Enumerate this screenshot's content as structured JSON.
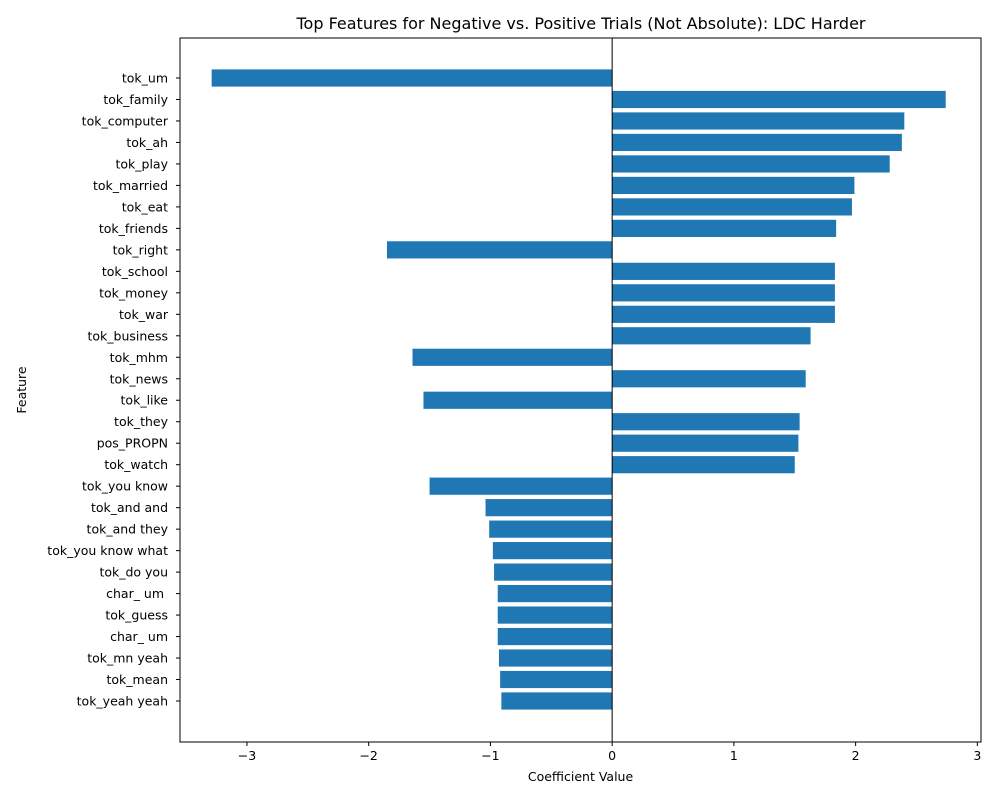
{
  "chart_data": {
    "type": "bar",
    "orientation": "horizontal",
    "title": "Top Features for Negative vs. Positive Trials (Not Absolute): LDC Harder",
    "xlabel": "Coefficient Value",
    "ylabel": "Feature",
    "xlim": [
      -3.55,
      3.03
    ],
    "xticks": [
      -3,
      -2,
      -1,
      0,
      1,
      2,
      3
    ],
    "xtick_labels": [
      "−3",
      "−2",
      "−1",
      "0",
      "1",
      "2",
      "3"
    ],
    "bar_color": "#1f77b4",
    "categories": [
      "tok_um",
      "tok_family",
      "tok_computer",
      "tok_ah",
      "tok_play",
      "tok_married",
      "tok_eat",
      "tok_friends",
      "tok_right",
      "tok_school",
      "tok_money",
      "tok_war",
      "tok_business",
      "tok_mhm",
      "tok_news",
      "tok_like",
      "tok_they",
      "pos_PROPN",
      "tok_watch",
      "tok_you know",
      "tok_and and",
      "tok_and they",
      "tok_you know what",
      "tok_do you",
      "char_ um ",
      "tok_guess",
      "char_ um",
      "tok_mn yeah",
      "tok_mean",
      "tok_yeah yeah"
    ],
    "values": [
      -3.29,
      2.74,
      2.4,
      2.38,
      2.28,
      1.99,
      1.97,
      1.84,
      -1.85,
      1.83,
      1.83,
      1.83,
      1.63,
      -1.64,
      1.59,
      -1.55,
      1.54,
      1.53,
      1.5,
      -1.5,
      -1.04,
      -1.01,
      -0.98,
      -0.97,
      -0.94,
      -0.94,
      -0.94,
      -0.93,
      -0.92,
      -0.91
    ]
  }
}
